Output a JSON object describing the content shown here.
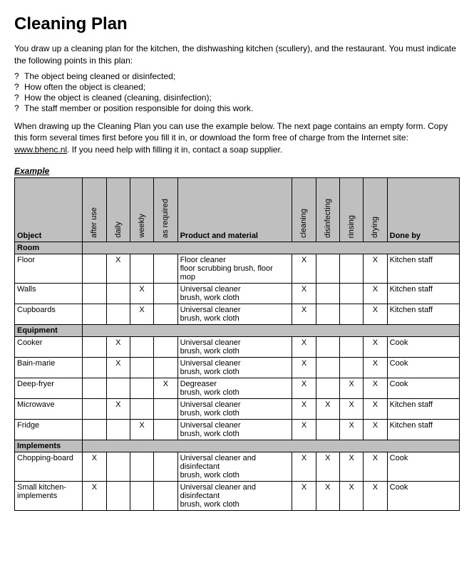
{
  "title": "Cleaning Plan",
  "intro": "You draw up a cleaning plan for the kitchen, the dishwashing kitchen (scullery), and the restaurant. You must indicate the following points in this plan:",
  "bullets": [
    "The object being cleaned or disinfected;",
    "How often the object is cleaned;",
    "How the object is cleaned (cleaning, disinfection);",
    "The staff member or position responsible for doing this work."
  ],
  "second_para_before": "When drawing up the Cleaning Plan you can use the example below. The next page contains an empty form. Copy this form several times first before you fill it in, or download the form free of charge from the Internet site: ",
  "link_text": "www.bhenc.nl",
  "second_para_after": ". If you need help with filling it in, contact a soap supplier.",
  "example_label": "Example",
  "columns": {
    "object": "Object",
    "after_use": "after use",
    "daily": "daily",
    "weekly": "weekly",
    "as_required": "as required",
    "product": "Product and material",
    "cleaning": "cleaning",
    "disinfecting": "disinfecting",
    "rinsing": "rinsing",
    "drying": "drying",
    "done_by": "Done by"
  },
  "sections": [
    {
      "name": "Room",
      "rows": [
        {
          "object": "Floor",
          "after_use": "",
          "daily": "X",
          "weekly": "",
          "as_required": "",
          "product": "Floor cleaner\nfloor scrubbing brush, floor mop",
          "cleaning": "X",
          "disinfecting": "",
          "rinsing": "",
          "drying": "X",
          "done_by": "Kitchen staff"
        },
        {
          "object": "Walls",
          "after_use": "",
          "daily": "",
          "weekly": "X",
          "as_required": "",
          "product": "Universal cleaner\nbrush, work cloth",
          "cleaning": "X",
          "disinfecting": "",
          "rinsing": "",
          "drying": "X",
          "done_by": "Kitchen staff"
        },
        {
          "object": "Cupboards",
          "after_use": "",
          "daily": "",
          "weekly": "X",
          "as_required": "",
          "product": "Universal cleaner\nbrush, work cloth",
          "cleaning": "X",
          "disinfecting": "",
          "rinsing": "",
          "drying": "X",
          "done_by": "Kitchen staff"
        }
      ]
    },
    {
      "name": "Equipment",
      "rows": [
        {
          "object": "Cooker",
          "after_use": "",
          "daily": "X",
          "weekly": "",
          "as_required": "",
          "product": "Universal cleaner\nbrush, work cloth",
          "cleaning": "X",
          "disinfecting": "",
          "rinsing": "",
          "drying": "X",
          "done_by": "Cook"
        },
        {
          "object": "Bain-marie",
          "after_use": "",
          "daily": "X",
          "weekly": "",
          "as_required": "",
          "product": "Universal cleaner\nbrush, work cloth",
          "cleaning": "X",
          "disinfecting": "",
          "rinsing": "",
          "drying": "X",
          "done_by": "Cook"
        },
        {
          "object": "Deep-fryer",
          "after_use": "",
          "daily": "",
          "weekly": "",
          "as_required": "X",
          "product": "Degreaser\nbrush, work cloth",
          "cleaning": "X",
          "disinfecting": "",
          "rinsing": "X",
          "drying": "X",
          "done_by": "Cook"
        },
        {
          "object": "Microwave",
          "after_use": "",
          "daily": "X",
          "weekly": "",
          "as_required": "",
          "product": "Universal cleaner\nbrush, work cloth",
          "cleaning": "X",
          "disinfecting": "X",
          "rinsing": "X",
          "drying": "X",
          "done_by": "Kitchen staff"
        },
        {
          "object": "Fridge",
          "after_use": "",
          "daily": "",
          "weekly": "X",
          "as_required": "",
          "product": "Universal cleaner\nbrush, work cloth",
          "cleaning": "X",
          "disinfecting": "",
          "rinsing": "X",
          "drying": "X",
          "done_by": "Kitchen staff"
        }
      ]
    },
    {
      "name": "Implements",
      "rows": [
        {
          "object": "Chopping-board",
          "after_use": "X",
          "daily": "",
          "weekly": "",
          "as_required": "",
          "product": "Universal cleaner and disinfectant\nbrush, work cloth",
          "cleaning": "X",
          "disinfecting": "X",
          "rinsing": "X",
          "drying": "X",
          "done_by": "Cook"
        },
        {
          "object": "Small kitchen-implements",
          "after_use": "X",
          "daily": "",
          "weekly": "",
          "as_required": "",
          "product": "Universal cleaner and disinfectant\nbrush, work cloth",
          "cleaning": "X",
          "disinfecting": "X",
          "rinsing": "X",
          "drying": "X",
          "done_by": "Cook"
        }
      ]
    }
  ]
}
